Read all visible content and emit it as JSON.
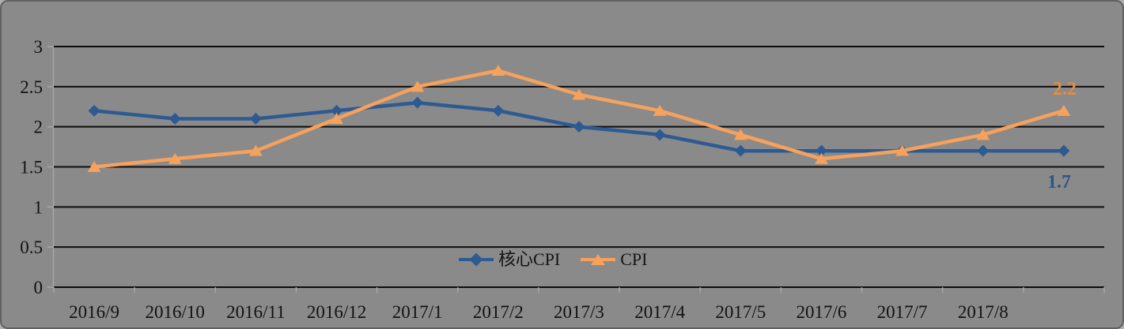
{
  "chart": {
    "background": "#8a8a8a",
    "border_color": "#616161",
    "gridline_color": "#0d0d0d",
    "axis_tick_color": "#a6a6a6",
    "label_text_color": "#121212"
  },
  "chart_data": {
    "type": "line",
    "title": "",
    "xlabel": "",
    "ylabel": "",
    "categories": [
      "2016/9",
      "2016/10",
      "2016/11",
      "2016/12",
      "2017/1",
      "2017/2",
      "2017/3",
      "2017/4",
      "2017/5",
      "2017/6",
      "2017/7",
      "2017/8",
      ""
    ],
    "series": [
      {
        "name": "核心CPI",
        "marker": "diamond",
        "color": "#2e5a92",
        "label_color": "#2b5787",
        "values": [
          2.2,
          2.1,
          2.1,
          2.2,
          2.3,
          2.2,
          2.0,
          1.9,
          1.7,
          1.7,
          1.7,
          1.7,
          1.7
        ],
        "end_label": "1.7"
      },
      {
        "name": "CPI",
        "marker": "triangle-up",
        "color": "#f6a15c",
        "label_color": "#e78d3f",
        "values": [
          1.5,
          1.6,
          1.7,
          2.1,
          2.5,
          2.7,
          2.4,
          2.2,
          1.9,
          1.6,
          1.7,
          1.9,
          2.2
        ],
        "end_label": "2.2"
      }
    ],
    "ylim": [
      0,
      3
    ],
    "y_ticks": [
      "0",
      "0.5",
      "1",
      "1.5",
      "2",
      "2.5",
      "3"
    ],
    "grid": "horizontal",
    "legend_position": "inside-bottom-center"
  }
}
